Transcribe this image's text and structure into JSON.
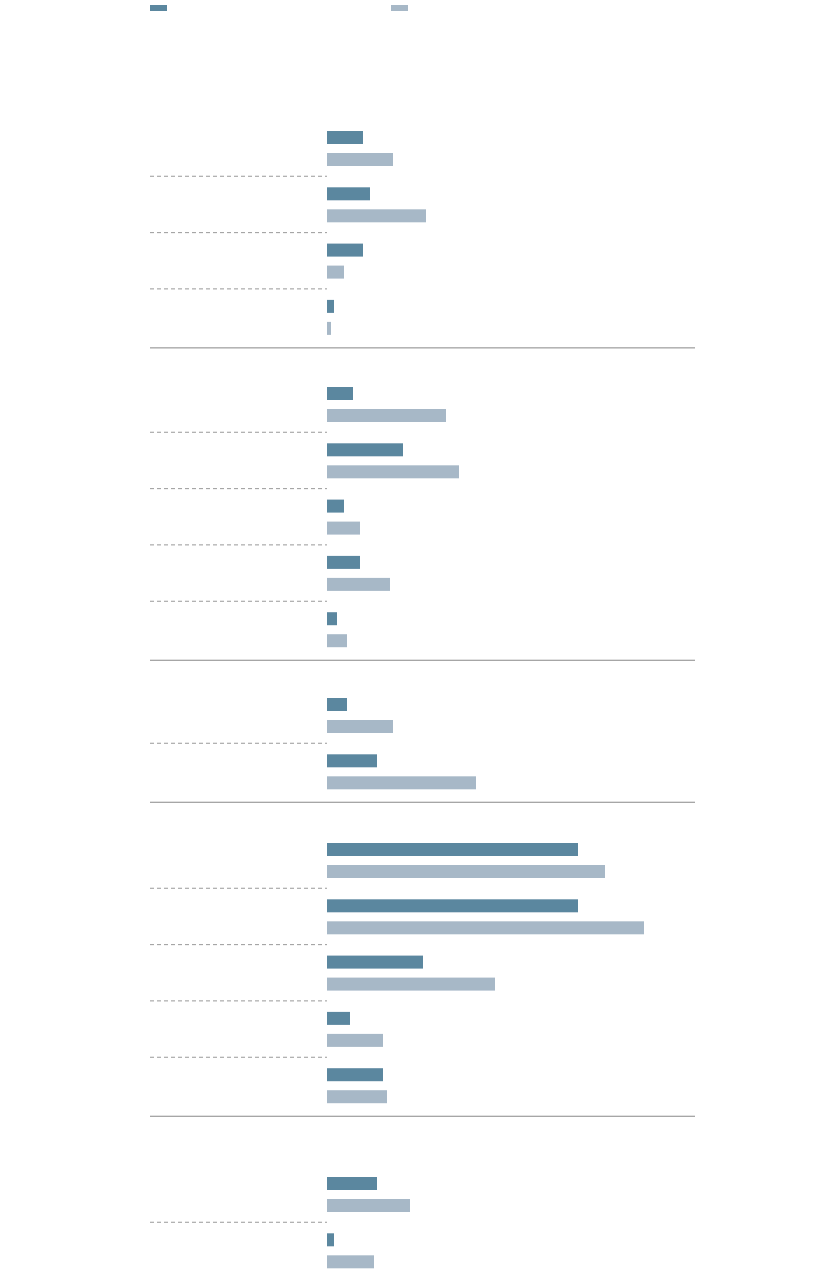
{
  "chart_data": [
    {
      "type": "bar",
      "categories": [
        null,
        null,
        null,
        null
      ],
      "xlim": [
        0,
        368
      ],
      "series": [
        {
          "color": "#5b879f",
          "values": [
            36,
            43,
            36,
            7
          ]
        },
        {
          "color": "#a7b8c7",
          "values": [
            66,
            99,
            17,
            4
          ]
        }
      ]
    },
    {
      "type": "bar",
      "categories": [
        null,
        null,
        null,
        null,
        null
      ],
      "xlim": [
        0,
        368
      ],
      "series": [
        {
          "color": "#5b879f",
          "values": [
            26,
            76,
            17,
            33,
            10
          ]
        },
        {
          "color": "#a7b8c7",
          "values": [
            119,
            132,
            33,
            63,
            20
          ]
        }
      ]
    },
    {
      "type": "bar",
      "categories": [
        null,
        null
      ],
      "xlim": [
        0,
        368
      ],
      "series": [
        {
          "color": "#5b879f",
          "values": [
            20,
            50
          ]
        },
        {
          "color": "#a7b8c7",
          "values": [
            66,
            149
          ]
        }
      ]
    },
    {
      "type": "bar",
      "categories": [
        null,
        null,
        null,
        null,
        null
      ],
      "xlim": [
        0,
        368
      ],
      "series": [
        {
          "color": "#5b879f",
          "values": [
            251,
            251,
            96,
            23,
            56
          ]
        },
        {
          "color": "#a7b8c7",
          "values": [
            278,
            317,
            168,
            56,
            60
          ]
        }
      ]
    },
    {
      "type": "bar",
      "categories": [
        null,
        null
      ],
      "xlim": [
        0,
        368
      ],
      "series": [
        {
          "color": "#5b879f",
          "values": [
            50,
            7
          ]
        },
        {
          "color": "#a7b8c7",
          "values": [
            83,
            47
          ]
        }
      ]
    }
  ]
}
